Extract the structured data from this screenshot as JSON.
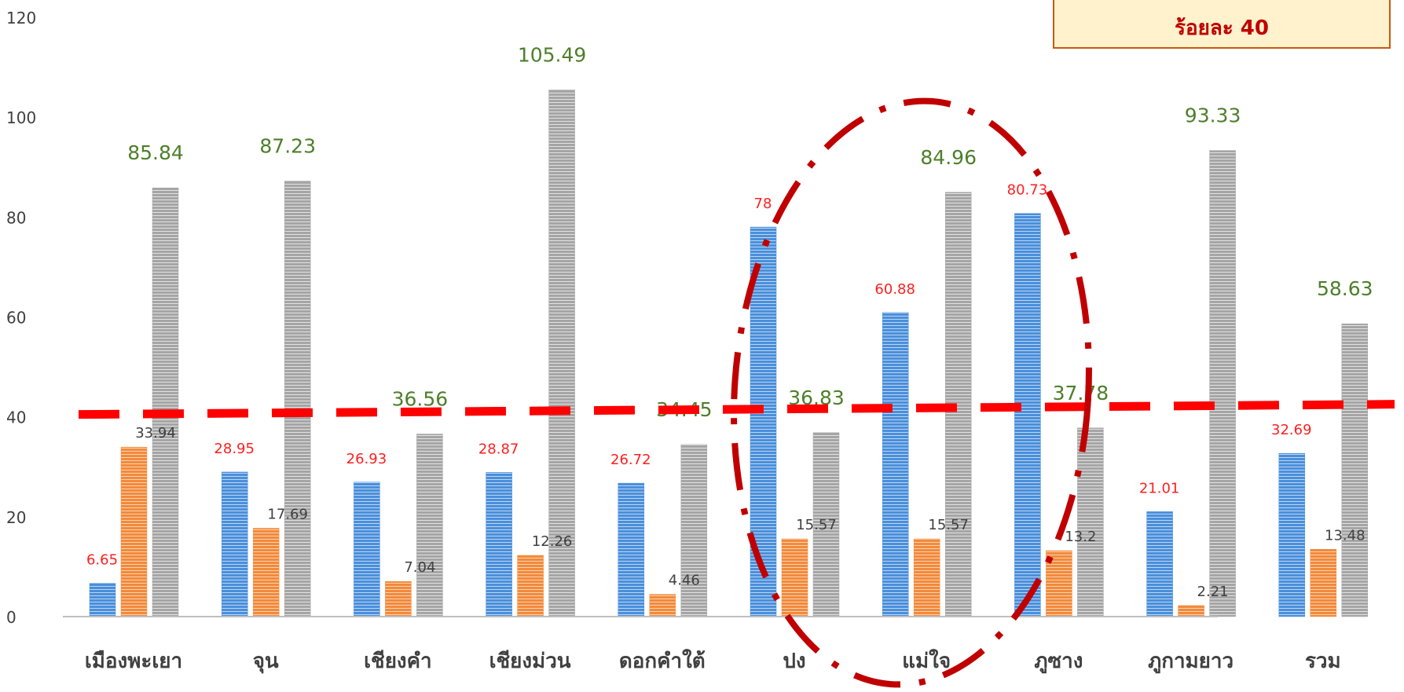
{
  "chart_data": {
    "type": "bar",
    "categories": [
      "เมืองพะเยา",
      "จุน",
      "เชียงคำ",
      "เชียงม่วน",
      "ดอกคำใต้",
      "ปง",
      "แม่ใจ",
      "ภูซาง",
      "ภูกามยาว",
      "รวม"
    ],
    "series": [
      {
        "values": [
          6.65,
          28.95,
          26.93,
          28.87,
          26.72,
          78,
          60.88,
          80.73,
          21.01,
          32.69
        ],
        "color": "#4a8fdb",
        "label_color": "#ff1f1f"
      },
      {
        "values": [
          33.94,
          17.69,
          7.04,
          12.26,
          4.46,
          15.57,
          15.57,
          13.2,
          2.21,
          13.48
        ],
        "color": "#f28a3c",
        "label_color": "#404040"
      },
      {
        "values": [
          85.84,
          87.23,
          36.56,
          105.49,
          34.45,
          36.83,
          84.96,
          37.78,
          93.33,
          58.63
        ],
        "color": "#a5a5a5",
        "label_color": "#4d7f2a"
      }
    ],
    "ylim": [
      0,
      120
    ],
    "yticks": [
      0,
      20,
      40,
      60,
      80,
      100,
      120
    ],
    "reference_line": {
      "value": 40,
      "color": "#ff0000",
      "style": "dashed"
    },
    "grid": false,
    "annotation": "ร้อยละ 40"
  }
}
